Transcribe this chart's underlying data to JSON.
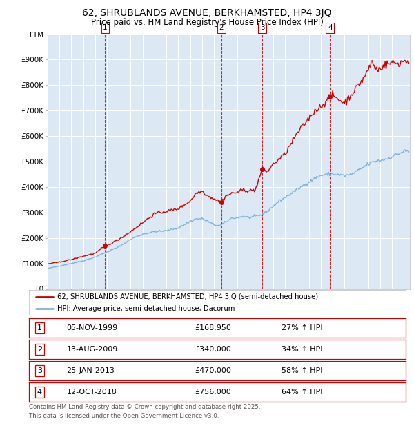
{
  "title": "62, SHRUBLANDS AVENUE, BERKHAMSTED, HP4 3JQ",
  "subtitle": "Price paid vs. HM Land Registry's House Price Index (HPI)",
  "legend_line1": "62, SHRUBLANDS AVENUE, BERKHAMSTED, HP4 3JQ (semi-detached house)",
  "legend_line2": "HPI: Average price, semi-detached house, Dacorum",
  "footer1": "Contains HM Land Registry data © Crown copyright and database right 2025.",
  "footer2": "This data is licensed under the Open Government Licence v3.0.",
  "sales": [
    {
      "label": "1",
      "date": "05-NOV-1999",
      "price": 168950,
      "hpi_pct": "27% ↑ HPI",
      "x_year": 1999.85
    },
    {
      "label": "2",
      "date": "13-AUG-2009",
      "price": 340000,
      "hpi_pct": "34% ↑ HPI",
      "x_year": 2009.62
    },
    {
      "label": "3",
      "date": "25-JAN-2013",
      "price": 470000,
      "hpi_pct": "58% ↑ HPI",
      "x_year": 2013.07
    },
    {
      "label": "4",
      "date": "12-OCT-2018",
      "price": 756000,
      "hpi_pct": "64% ↑ HPI",
      "x_year": 2018.78
    }
  ],
  "background_color": "#dce9f5",
  "fig_bg_color": "#ffffff",
  "line_color_red": "#cc0000",
  "line_color_blue": "#7fb3d9",
  "grid_color": "#ffffff",
  "vline_color": "#cc0000",
  "ylim": [
    0,
    1000000
  ],
  "xlim_start": 1995.0,
  "xlim_end": 2025.5,
  "ytick_labels": [
    "£0",
    "£100K",
    "£200K",
    "£300K",
    "£400K",
    "£500K",
    "£600K",
    "£700K",
    "£800K",
    "£900K",
    "£1M"
  ],
  "ytick_values": [
    0,
    100000,
    200000,
    300000,
    400000,
    500000,
    600000,
    700000,
    800000,
    900000,
    1000000
  ],
  "hpi_key_years": [
    1995.0,
    1996.0,
    1997.0,
    1998.0,
    1999.0,
    2000.0,
    2001.0,
    2002.0,
    2003.0,
    2004.0,
    2005.0,
    2006.0,
    2007.0,
    2007.5,
    2008.0,
    2008.5,
    2009.0,
    2009.5,
    2010.0,
    2010.5,
    2011.0,
    2011.5,
    2012.0,
    2012.5,
    2013.0,
    2013.5,
    2014.0,
    2014.5,
    2015.0,
    2015.5,
    2016.0,
    2016.5,
    2017.0,
    2017.5,
    2018.0,
    2018.5,
    2019.0,
    2019.5,
    2020.0,
    2020.5,
    2021.0,
    2021.5,
    2022.0,
    2022.5,
    2023.0,
    2023.5,
    2024.0,
    2024.5,
    2025.0
  ],
  "hpi_key_vals": [
    80000,
    90000,
    100000,
    110000,
    125000,
    145000,
    165000,
    195000,
    215000,
    225000,
    228000,
    240000,
    265000,
    275000,
    275000,
    265000,
    252000,
    248000,
    262000,
    278000,
    280000,
    285000,
    280000,
    285000,
    290000,
    305000,
    325000,
    345000,
    360000,
    375000,
    390000,
    405000,
    420000,
    435000,
    445000,
    450000,
    452000,
    448000,
    445000,
    448000,
    460000,
    475000,
    490000,
    500000,
    505000,
    510000,
    520000,
    530000,
    540000
  ],
  "prop_key_years": [
    1995.0,
    1996.0,
    1997.0,
    1998.0,
    1999.0,
    1999.85,
    2000.0,
    2001.0,
    2002.0,
    2003.0,
    2004.0,
    2005.0,
    2006.0,
    2007.0,
    2007.5,
    2008.0,
    2008.5,
    2009.0,
    2009.62,
    2009.7,
    2010.0,
    2010.5,
    2011.0,
    2011.5,
    2012.0,
    2012.5,
    2013.07,
    2013.2,
    2013.5,
    2014.0,
    2014.5,
    2015.0,
    2015.5,
    2016.0,
    2016.5,
    2017.0,
    2017.5,
    2018.0,
    2018.78,
    2019.0,
    2019.5,
    2020.0,
    2020.5,
    2021.0,
    2021.5,
    2022.0,
    2022.3,
    2022.5,
    2022.8,
    2023.0,
    2023.5,
    2024.0,
    2024.5,
    2025.0
  ],
  "prop_key_vals": [
    98000,
    105000,
    115000,
    128000,
    140000,
    168950,
    170000,
    195000,
    225000,
    260000,
    295000,
    305000,
    315000,
    345000,
    375000,
    385000,
    365000,
    355000,
    340000,
    345000,
    365000,
    375000,
    380000,
    390000,
    385000,
    390000,
    470000,
    470000,
    460000,
    490000,
    510000,
    530000,
    570000,
    610000,
    640000,
    670000,
    700000,
    715000,
    756000,
    760000,
    745000,
    730000,
    760000,
    790000,
    820000,
    860000,
    895000,
    875000,
    855000,
    870000,
    880000,
    890000,
    885000,
    895000
  ]
}
